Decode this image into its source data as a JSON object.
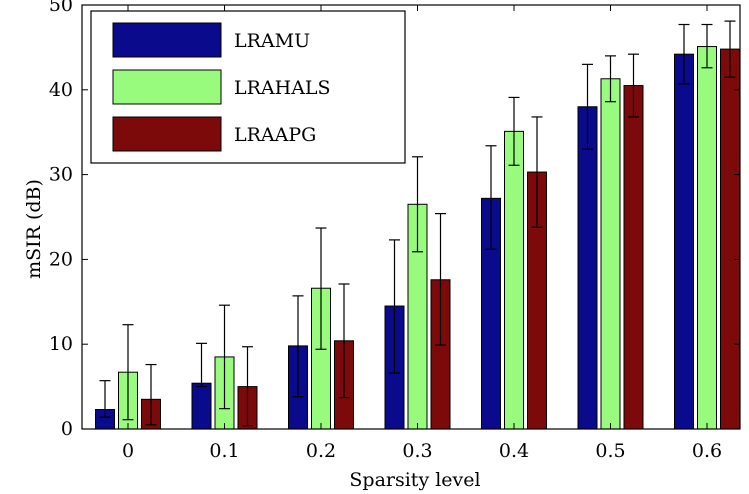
{
  "chart_data": {
    "type": "bar",
    "title": "",
    "xlabel": "Sparsity level",
    "ylabel": "mSIR (dB)",
    "categories": [
      "0",
      "0.1",
      "0.2",
      "0.3",
      "0.4",
      "0.5",
      "0.6"
    ],
    "ylim": [
      0,
      50
    ],
    "yticks": [
      "0",
      "10",
      "20",
      "30",
      "40",
      "50"
    ],
    "grid": false,
    "legend": "top-left",
    "series": [
      {
        "name": "LRAMU",
        "color": "#0a0a8c",
        "values": [
          2.3,
          5.4,
          9.8,
          14.5,
          27.2,
          38.0,
          44.2
        ],
        "err_low": [
          1.4,
          5.0,
          3.8,
          6.6,
          21.2,
          33.0,
          40.7
        ],
        "err_high": [
          5.7,
          10.1,
          15.7,
          22.3,
          33.4,
          43.0,
          47.7
        ]
      },
      {
        "name": "LRAHALS",
        "color": "#98fb7e",
        "values": [
          6.7,
          8.5,
          16.6,
          26.5,
          35.1,
          41.3,
          45.1
        ],
        "err_low": [
          1.1,
          2.4,
          9.4,
          20.9,
          31.1,
          38.6,
          42.6
        ],
        "err_high": [
          12.3,
          14.6,
          23.7,
          32.1,
          39.1,
          44.0,
          47.7
        ]
      },
      {
        "name": "LRAAPG",
        "color": "#7d0a0a",
        "values": [
          3.5,
          5.0,
          10.4,
          17.6,
          30.3,
          40.5,
          44.8
        ],
        "err_low": [
          0.5,
          0.4,
          3.7,
          9.9,
          23.8,
          36.8,
          41.5
        ],
        "err_high": [
          7.6,
          9.7,
          17.1,
          25.4,
          36.8,
          44.2,
          48.1
        ]
      }
    ]
  }
}
